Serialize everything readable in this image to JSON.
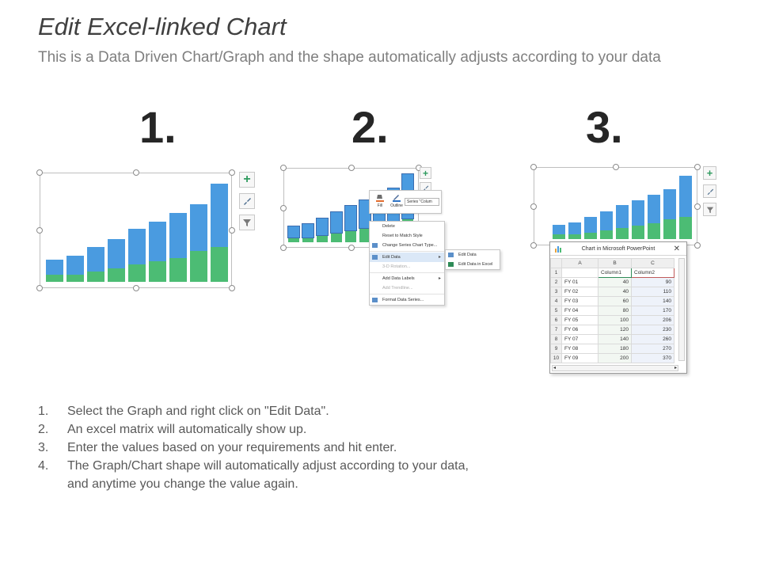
{
  "header": {
    "title": "Edit Excel-linked Chart",
    "subtitle": "This is a Data Driven Chart/Graph and the shape automatically adjusts according to your data"
  },
  "steps": [
    {
      "number": "1."
    },
    {
      "number": "2."
    },
    {
      "number": "3."
    }
  ],
  "side_buttons": [
    "plus-icon",
    "brush-icon",
    "filter-icon"
  ],
  "context_menu": {
    "toolbar": {
      "fill_label": "Fill",
      "outline_label": "Outline",
      "series_select": "Series \"Colum"
    },
    "items": [
      {
        "label": "Delete",
        "disabled": false
      },
      {
        "label": "Reset to Match Style",
        "disabled": false
      },
      {
        "label": "Change Series Chart Type...",
        "disabled": false
      },
      {
        "label": "Edit Data",
        "disabled": false,
        "submenu": true,
        "highlight": true
      },
      {
        "label": "3-D Rotation...",
        "disabled": true
      },
      {
        "label": "Add Data Labels",
        "disabled": false,
        "submenu": true
      },
      {
        "label": "Add Trendline...",
        "disabled": true
      },
      {
        "label": "Format Data Series...",
        "disabled": false
      }
    ],
    "submenu": [
      {
        "label": "Edit Data"
      },
      {
        "label": "Edit Data in Excel"
      }
    ]
  },
  "excel": {
    "title": "Chart in Microsoft PowerPoint",
    "col_headers": [
      "A",
      "B",
      "C"
    ],
    "row_numbers": [
      "1",
      "2",
      "3",
      "4",
      "5",
      "6",
      "7",
      "8",
      "9",
      "10"
    ],
    "header_row": [
      "",
      "Column1",
      "Column2"
    ],
    "rows": [
      [
        "FY 01",
        "40",
        "90"
      ],
      [
        "FY 02",
        "40",
        "110"
      ],
      [
        "FY 03",
        "60",
        "140"
      ],
      [
        "FY 04",
        "80",
        "170"
      ],
      [
        "FY 05",
        "100",
        "206"
      ],
      [
        "FY 06",
        "120",
        "230"
      ],
      [
        "FY 07",
        "140",
        "260"
      ],
      [
        "FY 08",
        "180",
        "270"
      ],
      [
        "FY 09",
        "200",
        "370"
      ]
    ]
  },
  "chart_data": {
    "type": "bar",
    "stacked": true,
    "categories": [
      "FY 01",
      "FY 02",
      "FY 03",
      "FY 04",
      "FY 05",
      "FY 06",
      "FY 07",
      "FY 08",
      "FY 09"
    ],
    "series": [
      {
        "name": "Column1",
        "values": [
          40,
          40,
          60,
          80,
          100,
          120,
          140,
          180,
          200
        ],
        "color": "#4cbc74"
      },
      {
        "name": "Column2",
        "values": [
          90,
          110,
          140,
          170,
          206,
          230,
          260,
          270,
          370
        ],
        "color": "#4a9be0"
      }
    ]
  },
  "instructions": [
    {
      "num": "1.",
      "text": "Select the Graph and right click on \"Edit Data\"."
    },
    {
      "num": "2.",
      "text": "An excel matrix will automatically show up."
    },
    {
      "num": "3.",
      "text": "Enter the values based on your requirements and hit enter."
    },
    {
      "num": "4.",
      "text": "The Graph/Chart shape will automatically adjust according to your data,"
    },
    {
      "num": "",
      "text": "and anytime you change the value again."
    }
  ],
  "colors": {
    "blue": "#4a9be0",
    "green": "#4cbc74",
    "frame": "#bfbfbf"
  }
}
